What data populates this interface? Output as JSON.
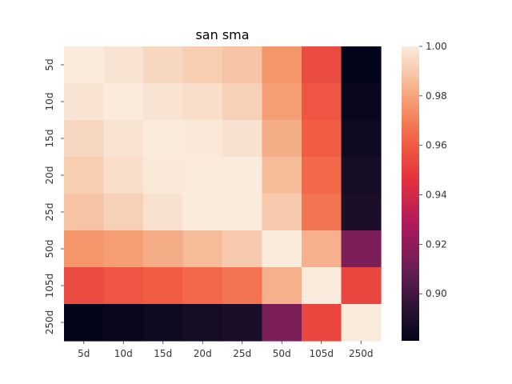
{
  "chart_data": {
    "type": "heatmap",
    "title": "san sma",
    "xlabel": "",
    "ylabel": "",
    "x_categories": [
      "5d",
      "10d",
      "15d",
      "20d",
      "25d",
      "50d",
      "105d",
      "250d"
    ],
    "y_categories": [
      "5d",
      "10d",
      "15d",
      "20d",
      "25d",
      "50d",
      "105d",
      "250d"
    ],
    "values": [
      [
        1.0,
        0.998,
        0.994,
        0.991,
        0.988,
        0.976,
        0.955,
        0.881
      ],
      [
        0.998,
        1.0,
        0.998,
        0.996,
        0.992,
        0.978,
        0.958,
        0.883
      ],
      [
        0.994,
        0.998,
        1.0,
        0.999,
        0.997,
        0.982,
        0.961,
        0.885
      ],
      [
        0.991,
        0.996,
        0.999,
        1.0,
        1.0,
        0.986,
        0.964,
        0.887
      ],
      [
        0.988,
        0.992,
        0.997,
        1.0,
        1.0,
        0.99,
        0.967,
        0.889
      ],
      [
        0.976,
        0.978,
        0.982,
        0.986,
        0.99,
        1.0,
        0.983,
        0.915
      ],
      [
        0.955,
        0.958,
        0.961,
        0.964,
        0.967,
        0.983,
        1.0,
        0.953
      ],
      [
        0.881,
        0.883,
        0.885,
        0.887,
        0.889,
        0.915,
        0.953,
        1.0
      ]
    ],
    "vmin": 0.881,
    "vmax": 1.0,
    "colorbar_ticks": [
      "0.90",
      "0.92",
      "0.94",
      "0.96",
      "0.98",
      "1.00"
    ],
    "colormap": "rocket",
    "grid": false
  }
}
